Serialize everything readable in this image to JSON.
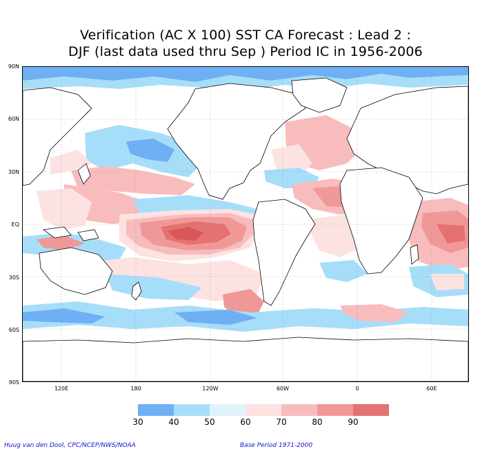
{
  "title": {
    "line1": "Verification (AC X 100) SST CA Forecast : Lead 2 :",
    "line2": "DJF (last data used thru Sep ) Period IC in 1956-2006"
  },
  "map": {
    "lat_labels": [
      "90N",
      "60N",
      "30N",
      "EQ",
      "30S",
      "60S",
      "90S"
    ],
    "lon_labels": [
      "120E",
      "180",
      "120W",
      "60W",
      "0",
      "60E"
    ],
    "land_fill": "#ffffff",
    "coast_color": "#000000",
    "grid_style": "dotted"
  },
  "legend": {
    "ticks": [
      "30",
      "40",
      "50",
      "60",
      "70",
      "80",
      "90"
    ],
    "colors": [
      "#6fb0f5",
      "#a6defa",
      "#dff3fb",
      "#fde2e2",
      "#f8bcbc",
      "#f09898",
      "#e47272",
      "#d85858"
    ]
  },
  "footer": {
    "left": "Huug van den Dool, CPC/NCEP/NWS/NOAA",
    "right": "Base Period 1971-2000"
  }
}
